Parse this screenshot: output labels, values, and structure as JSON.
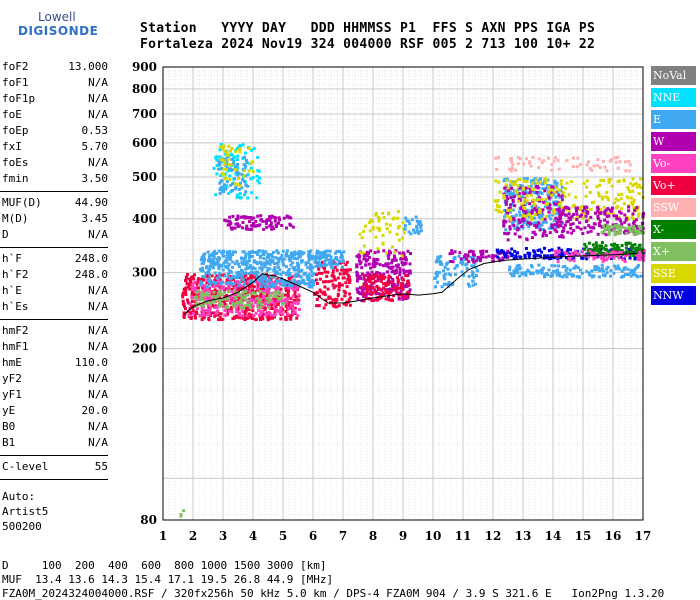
{
  "logo": {
    "line1": "Lowell",
    "line2": "DIGISONDE"
  },
  "header": {
    "row1": "Station   YYYY DAY   DDD HHMMSS P1  FFS S AXN PPS IGA PS",
    "row2": "Fortaleza 2024 Nov19 324 004000 RSF 005 2 713 100 10+ 22"
  },
  "params": [
    {
      "k": "foF2",
      "v": "13.000"
    },
    {
      "k": "foF1",
      "v": "N/A"
    },
    {
      "k": "foF1p",
      "v": "N/A"
    },
    {
      "k": "foE",
      "v": "N/A"
    },
    {
      "k": "foEp",
      "v": "0.53"
    },
    {
      "k": "fxI",
      "v": "5.70"
    },
    {
      "k": "foEs",
      "v": "N/A"
    },
    {
      "k": "fmin",
      "v": "3.50"
    },
    {
      "k": "MUF(D)",
      "v": "44.90"
    },
    {
      "k": "M(D)",
      "v": "3.45"
    },
    {
      "k": "D",
      "v": "N/A"
    },
    {
      "k": "h`F",
      "v": "248.0"
    },
    {
      "k": "h`F2",
      "v": "248.0"
    },
    {
      "k": "h`E",
      "v": "N/A"
    },
    {
      "k": "h`Es",
      "v": "N/A"
    },
    {
      "k": "hmF2",
      "v": "N/A"
    },
    {
      "k": "hmF1",
      "v": "N/A"
    },
    {
      "k": "hmE",
      "v": "110.0"
    },
    {
      "k": "yF2",
      "v": "N/A"
    },
    {
      "k": "yF1",
      "v": "N/A"
    },
    {
      "k": "yE",
      "v": "20.0"
    },
    {
      "k": "B0",
      "v": "N/A"
    },
    {
      "k": "B1",
      "v": "N/A"
    },
    {
      "k": "C-level",
      "v": "55"
    }
  ],
  "auto": {
    "line1": "Auto:",
    "line2": "Artist5",
    "line3": "500200"
  },
  "legend": [
    {
      "label": "NoVal",
      "color": "#808080"
    },
    {
      "label": "NNE",
      "color": "#00e0ff"
    },
    {
      "label": "E",
      "color": "#40a8f0"
    },
    {
      "label": "W",
      "color": "#b000b0"
    },
    {
      "label": "Vo-",
      "color": "#ff40c0"
    },
    {
      "label": "Vo+",
      "color": "#f00040"
    },
    {
      "label": "SSW",
      "color": "#ffb0b0"
    },
    {
      "label": "X-",
      "color": "#008000"
    },
    {
      "label": "X+",
      "color": "#80c060"
    },
    {
      "label": "SSE",
      "color": "#d8d800"
    },
    {
      "label": "NNW",
      "color": "#0000e0"
    }
  ],
  "footer": {
    "line1": "D     100  200  400  600  800 1000 1500 3000 [km]",
    "line2": "MUF  13.4 13.6 14.3 15.4 17.1 19.5 26.8 44.9 [MHz]",
    "line3": "FZA0M_2024324004000.RSF / 320fx256h 50 kHz 5.0 km / DPS-4 FZA0M 904 / 3.9 S 321.6 E   Ion2Png 1.3.20"
  },
  "chart_data": {
    "type": "scatter",
    "x_ticks": [
      1,
      2,
      3,
      4,
      5,
      6,
      7,
      8,
      9,
      10,
      11,
      12,
      13,
      14,
      15,
      16,
      17
    ],
    "y_ticks": [
      80,
      200,
      300,
      400,
      500,
      600,
      700,
      800,
      900
    ],
    "xlim": [
      1,
      17
    ],
    "ylim": [
      80,
      900
    ],
    "y_scale": "log",
    "grid": true,
    "trace": {
      "x": [
        1.7,
        2.0,
        2.5,
        3.0,
        3.5,
        4.0,
        4.3,
        4.7,
        5.0,
        5.5,
        6.0,
        6.5,
        7.0,
        7.5,
        8.0,
        8.5,
        9.0,
        9.5,
        10.0,
        10.3,
        10.8,
        11.2,
        11.7,
        12.3,
        12.8,
        13.5,
        14.0,
        15.0,
        16.0,
        16.8
      ],
      "y": [
        240,
        250,
        258,
        262,
        270,
        285,
        298,
        295,
        290,
        280,
        270,
        255,
        255,
        258,
        262,
        265,
        268,
        266,
        268,
        270,
        290,
        305,
        315,
        320,
        322,
        324,
        326,
        328,
        330,
        332
      ]
    },
    "clusters": [
      {
        "series": "Vo+",
        "x": [
          1.6,
          5.5
        ],
        "y": [
          235,
          300
        ],
        "n": 600
      },
      {
        "series": "Vo-",
        "x": [
          1.8,
          5.5
        ],
        "y": [
          240,
          290
        ],
        "n": 250
      },
      {
        "series": "X+",
        "x": [
          2.0,
          5.0
        ],
        "y": [
          250,
          275
        ],
        "n": 120
      },
      {
        "series": "E",
        "x": [
          2.2,
          6.0
        ],
        "y": [
          280,
          340
        ],
        "n": 450
      },
      {
        "series": "NNE",
        "x": [
          2.6,
          4.2
        ],
        "y": [
          450,
          600
        ],
        "n": 80
      },
      {
        "series": "E",
        "x": [
          2.8,
          3.8
        ],
        "y": [
          460,
          560
        ],
        "n": 60
      },
      {
        "series": "SSE",
        "x": [
          2.8,
          4.0
        ],
        "y": [
          480,
          600
        ],
        "n": 40
      },
      {
        "series": "W",
        "x": [
          3.0,
          5.3
        ],
        "y": [
          380,
          410
        ],
        "n": 90
      },
      {
        "series": "Vo+",
        "x": [
          6.0,
          7.2
        ],
        "y": [
          250,
          320
        ],
        "n": 120
      },
      {
        "series": "E",
        "x": [
          6.0,
          7.0
        ],
        "y": [
          310,
          340
        ],
        "n": 80
      },
      {
        "series": "W",
        "x": [
          7.4,
          9.2
        ],
        "y": [
          260,
          340
        ],
        "n": 250
      },
      {
        "series": "Vo+",
        "x": [
          7.6,
          9.2
        ],
        "y": [
          260,
          300
        ],
        "n": 100
      },
      {
        "series": "SSE",
        "x": [
          7.5,
          9.0
        ],
        "y": [
          330,
          420
        ],
        "n": 50
      },
      {
        "series": "E",
        "x": [
          9.0,
          9.6
        ],
        "y": [
          370,
          410
        ],
        "n": 25
      },
      {
        "series": "E",
        "x": [
          10.0,
          11.5
        ],
        "y": [
          280,
          330
        ],
        "n": 80
      },
      {
        "series": "W",
        "x": [
          10.5,
          12.5
        ],
        "y": [
          320,
          340
        ],
        "n": 60
      },
      {
        "series": "E",
        "x": [
          12.3,
          14.3
        ],
        "y": [
          380,
          500
        ],
        "n": 220
      },
      {
        "series": "W",
        "x": [
          12.3,
          14.3
        ],
        "y": [
          360,
          480
        ],
        "n": 160
      },
      {
        "series": "SSE",
        "x": [
          12.0,
          17.0
        ],
        "y": [
          400,
          500
        ],
        "n": 200
      },
      {
        "series": "SSW",
        "x": [
          12.0,
          16.8
        ],
        "y": [
          520,
          560
        ],
        "n": 60
      },
      {
        "series": "W",
        "x": [
          14.0,
          17.0
        ],
        "y": [
          370,
          430
        ],
        "n": 150
      },
      {
        "series": "E",
        "x": [
          12.5,
          17.0
        ],
        "y": [
          295,
          315
        ],
        "n": 150
      },
      {
        "series": "NNW",
        "x": [
          12.0,
          17.0
        ],
        "y": [
          325,
          345
        ],
        "n": 140
      },
      {
        "series": "X-",
        "x": [
          15.0,
          17.0
        ],
        "y": [
          330,
          355
        ],
        "n": 100
      },
      {
        "series": "X+",
        "x": [
          15.5,
          17.0
        ],
        "y": [
          370,
          390
        ],
        "n": 50
      },
      {
        "series": "Vo-",
        "x": [
          14.0,
          17.0
        ],
        "y": [
          320,
          340
        ],
        "n": 80
      },
      {
        "series": "X+",
        "x": [
          1.5,
          1.7
        ],
        "y": [
          82,
          86
        ],
        "n": 3
      }
    ]
  }
}
